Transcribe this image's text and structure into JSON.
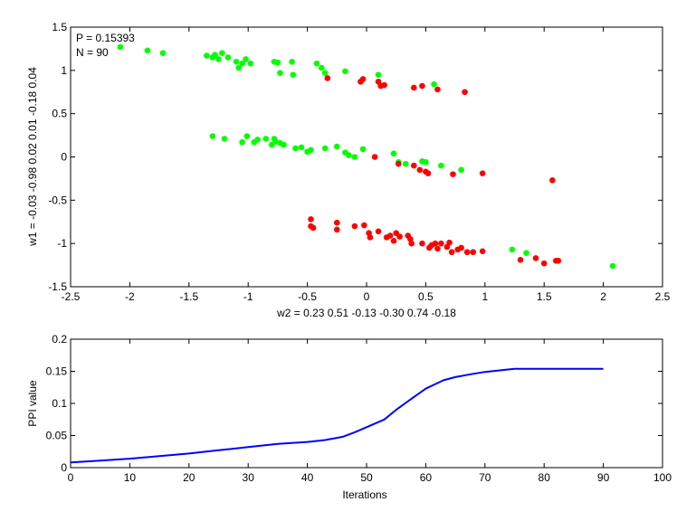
{
  "chart_data": [
    {
      "type": "scatter",
      "title": "",
      "xlabel": "w2 = 0.23  0.51  -0.13  -0.30  0.74  -0.18",
      "ylabel": "w1 = -0.03  -0.98  0.02  0.01  -0.18  0.04",
      "xlim": [
        -2.5,
        2.5
      ],
      "ylim": [
        -1.5,
        1.5
      ],
      "xticks": [
        -2.5,
        -2,
        -1.5,
        -1,
        -0.5,
        0,
        0.5,
        1,
        1.5,
        2,
        2.5
      ],
      "xtick_labels": [
        "-2.5",
        "-2",
        "-1.5",
        "-1",
        "-0.5",
        "0",
        "0.5",
        "1",
        "1.5",
        "2",
        "2.5"
      ],
      "yticks": [
        -1.5,
        -1,
        -0.5,
        0,
        0.5,
        1,
        1.5
      ],
      "ytick_labels": [
        "-1.5",
        "-1",
        "-0.5",
        "0",
        "0.5",
        "1",
        "1.5"
      ],
      "grid": false,
      "annotations": [
        "P = 0.15393",
        "N = 90"
      ],
      "colors": {
        "green": "#00ff00",
        "red": "#ff0000"
      },
      "series": [
        {
          "color": "green",
          "points": [
            [
              -2.08,
              1.27
            ],
            [
              -1.85,
              1.23
            ],
            [
              -1.72,
              1.2
            ],
            [
              -1.35,
              1.17
            ],
            [
              -1.3,
              1.15
            ],
            [
              -1.28,
              1.18
            ],
            [
              -1.25,
              1.13
            ],
            [
              -1.22,
              1.2
            ],
            [
              -1.17,
              1.15
            ],
            [
              -1.1,
              1.1
            ],
            [
              -1.08,
              1.03
            ],
            [
              -1.05,
              1.08
            ],
            [
              -1.02,
              1.13
            ],
            [
              -0.98,
              1.08
            ],
            [
              -0.78,
              1.1
            ],
            [
              -0.75,
              1.09
            ],
            [
              -0.73,
              0.97
            ],
            [
              -0.63,
              1.1
            ],
            [
              -0.62,
              0.95
            ],
            [
              -0.42,
              1.08
            ],
            [
              -0.38,
              1.03
            ],
            [
              -0.35,
              0.97
            ],
            [
              -0.18,
              0.99
            ],
            [
              0.1,
              0.95
            ],
            [
              0.57,
              0.84
            ],
            [
              -1.3,
              0.24
            ],
            [
              -1.2,
              0.21
            ],
            [
              -1.05,
              0.17
            ],
            [
              -1.01,
              0.24
            ],
            [
              -0.95,
              0.17
            ],
            [
              -0.92,
              0.2
            ],
            [
              -0.85,
              0.21
            ],
            [
              -0.8,
              0.14
            ],
            [
              -0.78,
              0.21
            ],
            [
              -0.77,
              0.18
            ],
            [
              -0.73,
              0.16
            ],
            [
              -0.7,
              0.14
            ],
            [
              -0.6,
              0.1
            ],
            [
              -0.55,
              0.11
            ],
            [
              -0.5,
              0.06
            ],
            [
              -0.47,
              0.08
            ],
            [
              -0.35,
              0.1
            ],
            [
              -0.25,
              0.12
            ],
            [
              -0.18,
              0.05
            ],
            [
              -0.15,
              0.02
            ],
            [
              -0.1,
              0.0
            ],
            [
              -0.03,
              0.09
            ],
            [
              0.23,
              0.04
            ],
            [
              0.27,
              -0.06
            ],
            [
              0.33,
              -0.08
            ],
            [
              0.47,
              -0.05
            ],
            [
              0.5,
              -0.06
            ],
            [
              0.63,
              -0.1
            ],
            [
              0.8,
              -0.15
            ],
            [
              1.23,
              -1.07
            ],
            [
              1.35,
              -1.11
            ],
            [
              2.08,
              -1.26
            ]
          ]
        },
        {
          "color": "red",
          "points": [
            [
              -0.33,
              0.91
            ],
            [
              -0.05,
              0.87
            ],
            [
              -0.03,
              0.9
            ],
            [
              0.1,
              0.87
            ],
            [
              0.12,
              0.82
            ],
            [
              0.15,
              0.83
            ],
            [
              0.4,
              0.8
            ],
            [
              0.47,
              0.82
            ],
            [
              0.6,
              0.78
            ],
            [
              0.83,
              0.75
            ],
            [
              0.07,
              0.0
            ],
            [
              0.27,
              -0.08
            ],
            [
              0.4,
              -0.1
            ],
            [
              0.45,
              -0.15
            ],
            [
              0.5,
              -0.17
            ],
            [
              0.52,
              -0.19
            ],
            [
              0.73,
              -0.2
            ],
            [
              0.98,
              -0.19
            ],
            [
              1.57,
              -0.27
            ],
            [
              -0.47,
              -0.72
            ],
            [
              -0.47,
              -0.8
            ],
            [
              -0.45,
              -0.82
            ],
            [
              -0.25,
              -0.76
            ],
            [
              -0.25,
              -0.84
            ],
            [
              -0.1,
              -0.8
            ],
            [
              -0.02,
              -0.79
            ],
            [
              0.02,
              -0.88
            ],
            [
              0.03,
              -0.93
            ],
            [
              0.1,
              -0.86
            ],
            [
              0.17,
              -0.93
            ],
            [
              0.2,
              -0.91
            ],
            [
              0.23,
              -0.97
            ],
            [
              0.25,
              -0.88
            ],
            [
              0.28,
              -0.92
            ],
            [
              0.35,
              -0.91
            ],
            [
              0.37,
              -0.95
            ],
            [
              0.38,
              -1.0
            ],
            [
              0.47,
              -1.0
            ],
            [
              0.53,
              -1.05
            ],
            [
              0.55,
              -1.02
            ],
            [
              0.58,
              -1.0
            ],
            [
              0.6,
              -1.06
            ],
            [
              0.63,
              -1.0
            ],
            [
              0.68,
              -1.04
            ],
            [
              0.7,
              -0.99
            ],
            [
              0.72,
              -1.1
            ],
            [
              0.77,
              -1.07
            ],
            [
              0.8,
              -1.05
            ],
            [
              0.85,
              -1.1
            ],
            [
              0.9,
              -1.1
            ],
            [
              0.98,
              -1.09
            ],
            [
              1.3,
              -1.19
            ],
            [
              1.43,
              -1.17
            ],
            [
              1.5,
              -1.23
            ],
            [
              1.6,
              -1.2
            ],
            [
              1.62,
              -1.2
            ]
          ]
        }
      ]
    },
    {
      "type": "line",
      "title": "",
      "xlabel": "Iterations",
      "ylabel": "PPI value",
      "xlim": [
        0,
        100
      ],
      "ylim": [
        0,
        0.2
      ],
      "xticks": [
        0,
        10,
        20,
        30,
        40,
        50,
        60,
        70,
        80,
        90,
        100
      ],
      "xtick_labels": [
        "0",
        "10",
        "20",
        "30",
        "40",
        "50",
        "60",
        "70",
        "80",
        "90",
        "100"
      ],
      "yticks": [
        0,
        0.05,
        0.1,
        0.15,
        0.2
      ],
      "ytick_labels": [
        "0",
        "0.05",
        "0.1",
        "0.15",
        "0.2"
      ],
      "grid": false,
      "colors": {
        "line": "#0000ff"
      },
      "series": [
        {
          "x": [
            0,
            5,
            10,
            15,
            20,
            25,
            30,
            35,
            40,
            43,
            46,
            48,
            50,
            53,
            55,
            58,
            60,
            63,
            65,
            68,
            70,
            73,
            75,
            80,
            85,
            90
          ],
          "y": [
            0.008,
            0.011,
            0.014,
            0.018,
            0.022,
            0.027,
            0.032,
            0.037,
            0.04,
            0.043,
            0.048,
            0.055,
            0.063,
            0.075,
            0.09,
            0.11,
            0.123,
            0.136,
            0.141,
            0.146,
            0.149,
            0.152,
            0.154,
            0.1539,
            0.1539,
            0.1539
          ]
        }
      ]
    }
  ]
}
